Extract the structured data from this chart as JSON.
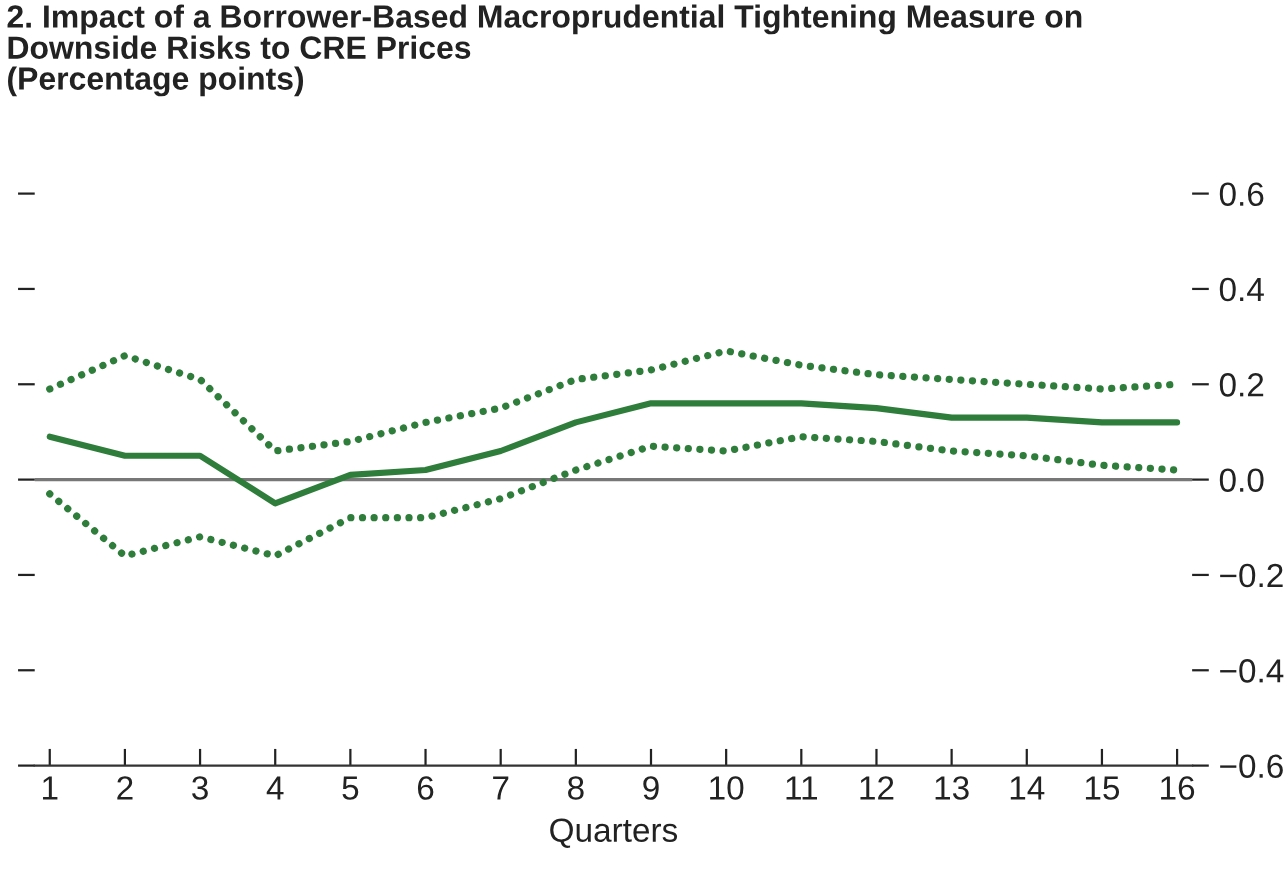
{
  "chart_data": {
    "type": "line",
    "title": "2. Impact of a Borrower-Based Macroprudential Tightening Measure on\nDownside Risks to CRE Prices\n(Percentage points)",
    "xlabel": "Quarters",
    "x": [
      1,
      2,
      3,
      4,
      5,
      6,
      7,
      8,
      9,
      10,
      11,
      12,
      13,
      14,
      15,
      16
    ],
    "xlim": [
      0.8,
      16.2
    ],
    "xticks": [
      1,
      2,
      3,
      4,
      5,
      6,
      7,
      8,
      9,
      10,
      11,
      12,
      13,
      14,
      15,
      16
    ],
    "ylim": [
      -0.6,
      0.6
    ],
    "yticks": [
      {
        "value": -0.6,
        "label": "−0.6"
      },
      {
        "value": -0.4,
        "label": "−0.4"
      },
      {
        "value": -0.2,
        "label": "−0.2"
      },
      {
        "value": 0.0,
        "label": "0.0"
      },
      {
        "value": 0.2,
        "label": "0.2"
      },
      {
        "value": 0.4,
        "label": "0.4"
      },
      {
        "value": 0.6,
        "label": "0.6"
      }
    ],
    "grid": false,
    "legend": false,
    "ref_lines": [
      {
        "axis": "y",
        "value": 0,
        "color": "#777777",
        "line_style": "solid"
      }
    ],
    "series": [
      {
        "color": "#2e7d3a",
        "line_style": "solid",
        "values": [
          0.09,
          0.05,
          0.05,
          -0.05,
          0.01,
          0.02,
          0.06,
          0.12,
          0.16,
          0.16,
          0.16,
          0.15,
          0.13,
          0.13,
          0.12,
          0.12
        ]
      },
      {
        "color": "#2e7d3a",
        "line_style": "dotted",
        "values": [
          0.19,
          0.26,
          0.21,
          0.06,
          0.08,
          0.12,
          0.15,
          0.21,
          0.23,
          0.27,
          0.24,
          0.22,
          0.21,
          0.2,
          0.19,
          0.2
        ]
      },
      {
        "color": "#2e7d3a",
        "line_style": "dotted",
        "values": [
          -0.03,
          -0.16,
          -0.12,
          -0.16,
          -0.08,
          -0.08,
          -0.04,
          0.02,
          0.07,
          0.06,
          0.09,
          0.08,
          0.06,
          0.05,
          0.03,
          0.02
        ]
      }
    ]
  }
}
